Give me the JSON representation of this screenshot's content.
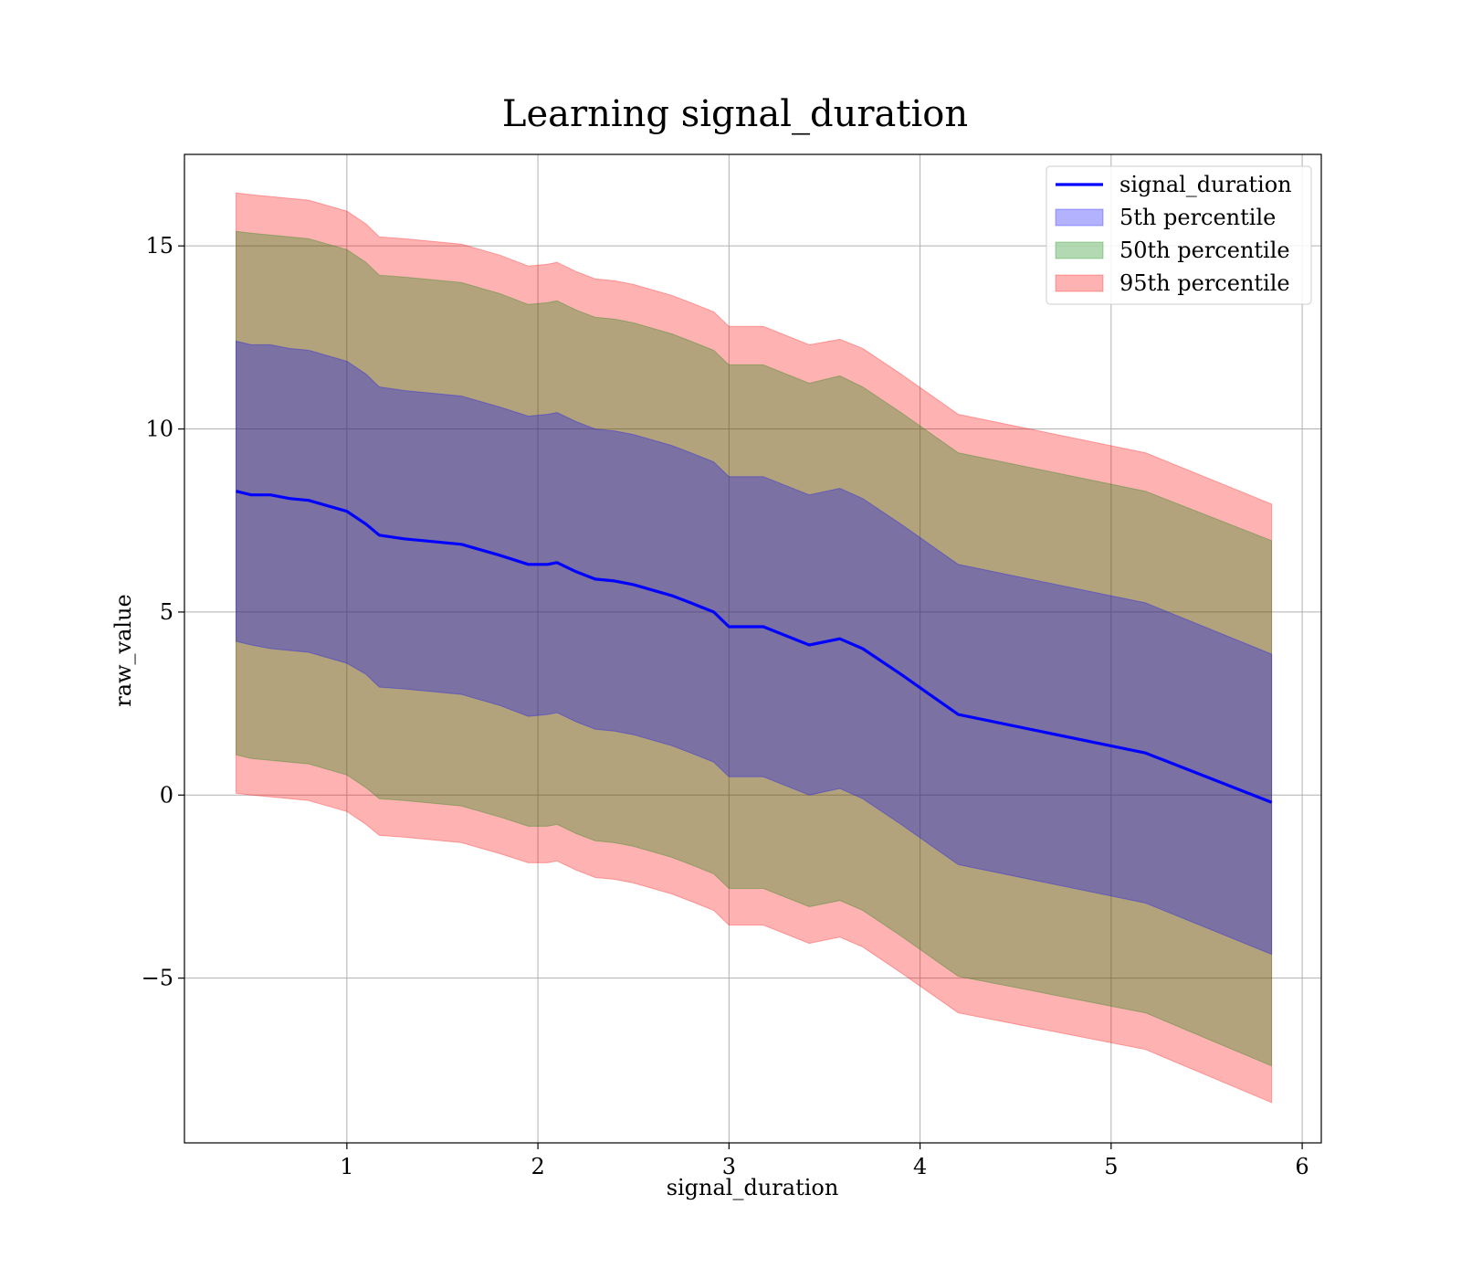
{
  "chart_data": {
    "type": "area",
    "title": "Learning signal_duration",
    "xlabel": "signal_duration",
    "ylabel": "raw_value",
    "xlim": [
      0.15,
      6.1
    ],
    "ylim": [
      -9.5,
      17.5
    ],
    "xticks": [
      1,
      2,
      3,
      4,
      5,
      6
    ],
    "yticks": [
      -5,
      0,
      5,
      10,
      15
    ],
    "ytick_labels": [
      "−5",
      "0",
      "5",
      "10",
      "15"
    ],
    "grid": true,
    "legend_position": "top-right",
    "x": [
      0.42,
      0.5,
      0.6,
      0.7,
      0.8,
      0.9,
      1.0,
      1.1,
      1.17,
      1.3,
      1.4,
      1.5,
      1.6,
      1.7,
      1.8,
      1.95,
      2.05,
      2.1,
      2.2,
      2.3,
      2.4,
      2.5,
      2.6,
      2.7,
      2.8,
      2.92,
      3.0,
      3.18,
      3.42,
      3.58,
      3.7,
      3.9,
      4.2,
      5.18,
      5.84
    ],
    "series": [
      {
        "name": "signal_duration",
        "kind": "line",
        "color": "#0000ff",
        "values": [
          8.3,
          8.2,
          8.2,
          8.1,
          8.05,
          7.9,
          7.75,
          7.4,
          7.1,
          7.0,
          6.95,
          6.9,
          6.85,
          6.7,
          6.55,
          6.3,
          6.3,
          6.35,
          6.1,
          5.9,
          5.85,
          5.75,
          5.6,
          5.45,
          5.25,
          5.0,
          4.6,
          4.6,
          4.1,
          4.27,
          4.0,
          3.3,
          2.2,
          1.15,
          -0.2
        ]
      },
      {
        "name": "5th percentile",
        "kind": "band",
        "color": "#0000ff",
        "lower": [
          4.2,
          4.1,
          4.0,
          3.95,
          3.9,
          3.75,
          3.6,
          3.3,
          2.95,
          2.9,
          2.85,
          2.8,
          2.75,
          2.6,
          2.45,
          2.15,
          2.2,
          2.25,
          2.0,
          1.8,
          1.75,
          1.65,
          1.5,
          1.35,
          1.15,
          0.9,
          0.5,
          0.5,
          0.0,
          0.18,
          -0.1,
          -0.8,
          -1.9,
          -2.95,
          -4.35
        ],
        "upper": [
          12.4,
          12.3,
          12.3,
          12.2,
          12.15,
          12.0,
          11.85,
          11.5,
          11.15,
          11.05,
          11.0,
          10.95,
          10.9,
          10.75,
          10.6,
          10.35,
          10.4,
          10.45,
          10.2,
          10.0,
          9.95,
          9.85,
          9.7,
          9.55,
          9.35,
          9.1,
          8.7,
          8.7,
          8.2,
          8.38,
          8.1,
          7.4,
          6.3,
          5.25,
          3.85
        ]
      },
      {
        "name": "50th percentile",
        "kind": "band",
        "color": "#008000",
        "lower": [
          1.1,
          1.0,
          0.95,
          0.9,
          0.85,
          0.7,
          0.55,
          0.2,
          -0.1,
          -0.15,
          -0.2,
          -0.25,
          -0.3,
          -0.45,
          -0.6,
          -0.85,
          -0.85,
          -0.8,
          -1.05,
          -1.25,
          -1.3,
          -1.4,
          -1.55,
          -1.7,
          -1.9,
          -2.15,
          -2.55,
          -2.55,
          -3.05,
          -2.88,
          -3.15,
          -3.85,
          -4.95,
          -5.95,
          -7.4
        ],
        "upper": [
          15.4,
          15.35,
          15.3,
          15.25,
          15.2,
          15.05,
          14.9,
          14.55,
          14.2,
          14.15,
          14.1,
          14.05,
          14.0,
          13.85,
          13.7,
          13.4,
          13.45,
          13.5,
          13.25,
          13.05,
          13.0,
          12.9,
          12.75,
          12.6,
          12.4,
          12.15,
          11.75,
          11.75,
          11.25,
          11.45,
          11.15,
          10.45,
          9.35,
          8.3,
          6.95
        ]
      },
      {
        "name": "95th percentile",
        "kind": "band",
        "color": "#ff0000",
        "lower": [
          0.05,
          0.0,
          -0.05,
          -0.1,
          -0.15,
          -0.3,
          -0.45,
          -0.8,
          -1.1,
          -1.15,
          -1.2,
          -1.25,
          -1.3,
          -1.45,
          -1.6,
          -1.85,
          -1.85,
          -1.8,
          -2.05,
          -2.25,
          -2.3,
          -2.4,
          -2.55,
          -2.7,
          -2.9,
          -3.15,
          -3.55,
          -3.55,
          -4.05,
          -3.88,
          -4.15,
          -4.85,
          -5.95,
          -6.95,
          -8.4
        ],
        "upper": [
          16.45,
          16.4,
          16.35,
          16.3,
          16.25,
          16.1,
          15.95,
          15.6,
          15.25,
          15.2,
          15.15,
          15.1,
          15.05,
          14.9,
          14.75,
          14.45,
          14.5,
          14.55,
          14.3,
          14.1,
          14.05,
          13.95,
          13.8,
          13.65,
          13.45,
          13.2,
          12.8,
          12.8,
          12.3,
          12.45,
          12.2,
          11.5,
          10.4,
          9.35,
          7.95
        ]
      }
    ]
  }
}
